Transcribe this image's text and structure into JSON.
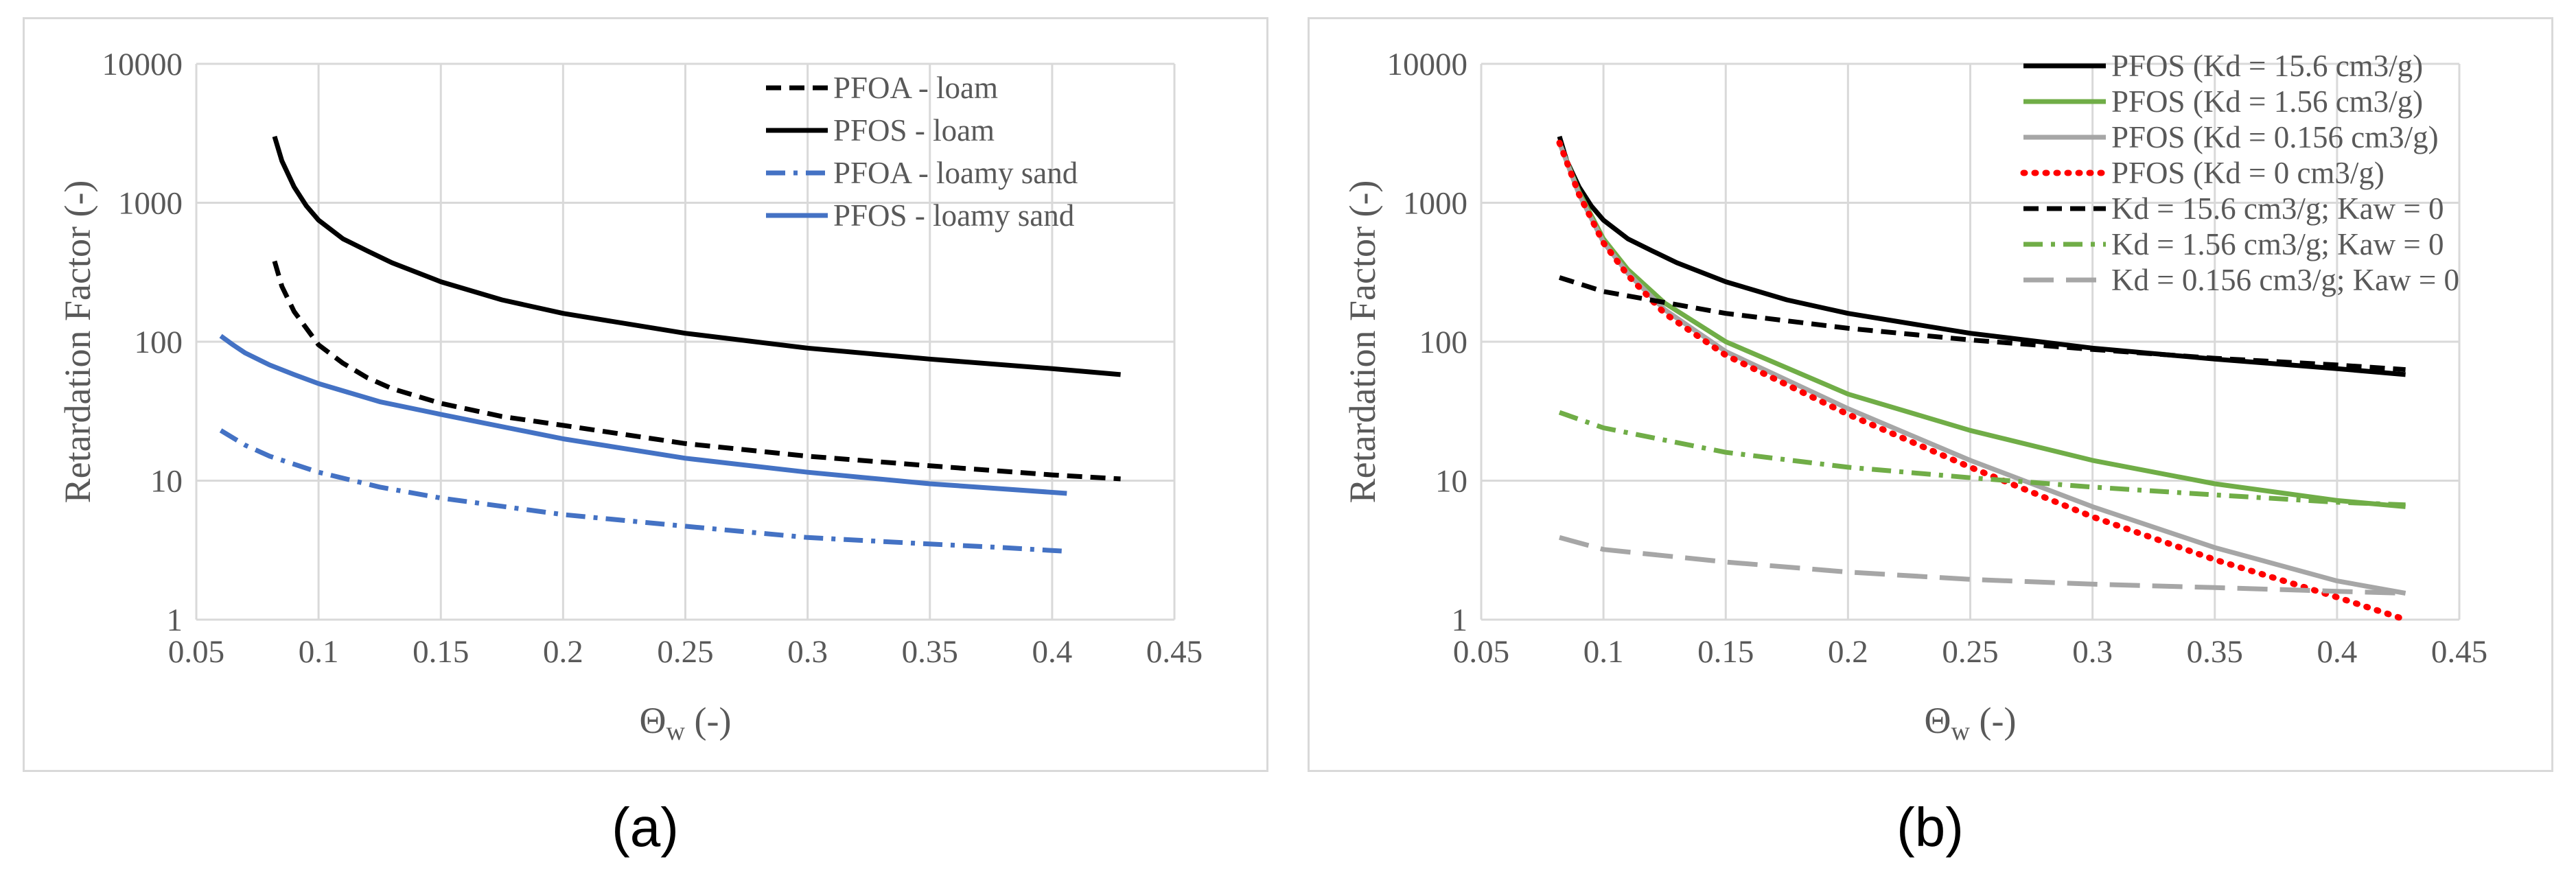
{
  "figure": {
    "caption_a": "(a)",
    "caption_b": "(b)"
  },
  "chart_data": [
    {
      "type": "line",
      "panel": "a",
      "title": "",
      "xlabel": "Θw (-)",
      "xlabel_main": "Θ",
      "xlabel_sub": "w",
      "xlabel_rest": " (-)",
      "ylabel": "Retardation Factor (-)",
      "xlim": [
        0.05,
        0.45
      ],
      "ylim": [
        1,
        10000
      ],
      "yscale": "log",
      "xticks": [
        0.05,
        0.1,
        0.15,
        0.2,
        0.25,
        0.3,
        0.35,
        0.4,
        0.45
      ],
      "xtick_labels": [
        "0.05",
        "0.1",
        "0.15",
        "0.2",
        "0.25",
        "0.3",
        "0.35",
        "0.4",
        "0.45"
      ],
      "yticks": [
        1,
        10,
        100,
        1000,
        10000
      ],
      "ytick_labels": [
        "1",
        "10",
        "100",
        "1000",
        "10000"
      ],
      "grid": true,
      "legend_position": "top-right",
      "series": [
        {
          "name": "PFOA - loam",
          "color": "#000000",
          "dash": "dash",
          "x": [
            0.082,
            0.085,
            0.09,
            0.1,
            0.11,
            0.12,
            0.13,
            0.15,
            0.175,
            0.2,
            0.25,
            0.3,
            0.35,
            0.4,
            0.428
          ],
          "y": [
            380,
            250,
            165,
            95,
            70,
            55,
            46,
            36,
            29,
            25,
            18.5,
            15,
            12.8,
            11,
            10.3
          ]
        },
        {
          "name": "PFOS - loam",
          "color": "#000000",
          "dash": "solid",
          "x": [
            0.082,
            0.085,
            0.09,
            0.095,
            0.1,
            0.11,
            0.12,
            0.13,
            0.15,
            0.175,
            0.2,
            0.25,
            0.3,
            0.35,
            0.4,
            0.428
          ],
          "y": [
            3000,
            2000,
            1300,
            950,
            750,
            550,
            450,
            370,
            270,
            200,
            160,
            115,
            90,
            75,
            64,
            58
          ]
        },
        {
          "name": "PFOA - loamy sand",
          "color": "#4472c4",
          "dash": "dashdot",
          "x": [
            0.06,
            0.07,
            0.08,
            0.1,
            0.125,
            0.15,
            0.2,
            0.25,
            0.3,
            0.35,
            0.38,
            0.406
          ],
          "y": [
            23,
            18,
            15,
            11.5,
            9,
            7.5,
            5.7,
            4.7,
            3.9,
            3.5,
            3.3,
            3.1
          ]
        },
        {
          "name": "PFOS - loamy sand",
          "color": "#4472c4",
          "dash": "solid",
          "x": [
            0.06,
            0.065,
            0.07,
            0.08,
            0.09,
            0.1,
            0.125,
            0.15,
            0.2,
            0.25,
            0.3,
            0.35,
            0.406
          ],
          "y": [
            110,
            95,
            83,
            68,
            58,
            50,
            37,
            30,
            20,
            14.5,
            11.5,
            9.5,
            8.1
          ]
        }
      ]
    },
    {
      "type": "line",
      "panel": "b",
      "title": "",
      "xlabel": "Θw (-)",
      "xlabel_main": "Θ",
      "xlabel_sub": "w",
      "xlabel_rest": " (-)",
      "ylabel": "Retardation Factor (-)",
      "xlim": [
        0.05,
        0.45
      ],
      "ylim": [
        1,
        10000
      ],
      "yscale": "log",
      "xticks": [
        0.05,
        0.1,
        0.15,
        0.2,
        0.25,
        0.3,
        0.35,
        0.4,
        0.45
      ],
      "xtick_labels": [
        "0.05",
        "0.1",
        "0.15",
        "0.2",
        "0.25",
        "0.3",
        "0.35",
        "0.4",
        "0.45"
      ],
      "yticks": [
        1,
        10,
        100,
        1000,
        10000
      ],
      "ytick_labels": [
        "1",
        "10",
        "100",
        "1000",
        "10000"
      ],
      "grid": true,
      "legend_position": "top-right",
      "series": [
        {
          "name": "PFOS (Kd = 15.6 cm3/g)",
          "color": "#000000",
          "dash": "solid",
          "x": [
            0.082,
            0.085,
            0.09,
            0.095,
            0.1,
            0.11,
            0.12,
            0.13,
            0.15,
            0.175,
            0.2,
            0.25,
            0.3,
            0.35,
            0.4,
            0.428
          ],
          "y": [
            3000,
            2000,
            1300,
            950,
            750,
            550,
            450,
            370,
            270,
            200,
            160,
            115,
            90,
            75,
            64,
            58
          ]
        },
        {
          "name": "PFOS (Kd = 1.56 cm3/g)",
          "color": "#70ad47",
          "dash": "solid",
          "x": [
            0.082,
            0.09,
            0.1,
            0.11,
            0.125,
            0.15,
            0.2,
            0.25,
            0.3,
            0.35,
            0.4,
            0.428
          ],
          "y": [
            2700,
            1200,
            550,
            330,
            190,
            100,
            42,
            23,
            14,
            9.5,
            7.2,
            6.5
          ]
        },
        {
          "name": "PFOS (Kd = 0.156 cm3/g)",
          "color": "#a6a6a6",
          "dash": "solid",
          "x": [
            0.082,
            0.09,
            0.1,
            0.11,
            0.125,
            0.15,
            0.2,
            0.25,
            0.3,
            0.35,
            0.4,
            0.428
          ],
          "y": [
            2700,
            1150,
            520,
            310,
            170,
            85,
            33,
            14,
            6.5,
            3.3,
            1.9,
            1.55
          ]
        },
        {
          "name": "PFOS (Kd = 0 cm3/g)",
          "color": "#ff0000",
          "dash": "dot",
          "x": [
            0.082,
            0.09,
            0.1,
            0.11,
            0.125,
            0.15,
            0.2,
            0.25,
            0.3,
            0.35,
            0.4,
            0.428
          ],
          "y": [
            2700,
            1150,
            515,
            300,
            160,
            80,
            30,
            12.5,
            5.5,
            2.7,
            1.45,
            1.0
          ]
        },
        {
          "name": "Kd = 15.6 cm3/g; Kaw = 0",
          "color": "#000000",
          "dash": "dash",
          "x": [
            0.082,
            0.1,
            0.15,
            0.2,
            0.25,
            0.3,
            0.35,
            0.4,
            0.428
          ],
          "y": [
            290,
            230,
            160,
            125,
            103,
            88,
            76,
            68,
            63
          ]
        },
        {
          "name": "Kd = 1.56 cm3/g; Kaw = 0",
          "color": "#70ad47",
          "dash": "dashdot",
          "x": [
            0.082,
            0.1,
            0.15,
            0.2,
            0.25,
            0.3,
            0.35,
            0.4,
            0.428
          ],
          "y": [
            31,
            24,
            16,
            12.5,
            10.5,
            9,
            7.9,
            7,
            6.7
          ]
        },
        {
          "name": "Kd = 0.156 cm3/g; Kaw = 0",
          "color": "#a6a6a6",
          "dash": "longdash",
          "x": [
            0.082,
            0.1,
            0.15,
            0.2,
            0.25,
            0.3,
            0.35,
            0.4,
            0.428
          ],
          "y": [
            3.9,
            3.2,
            2.6,
            2.2,
            1.95,
            1.8,
            1.7,
            1.6,
            1.55
          ]
        }
      ]
    }
  ]
}
